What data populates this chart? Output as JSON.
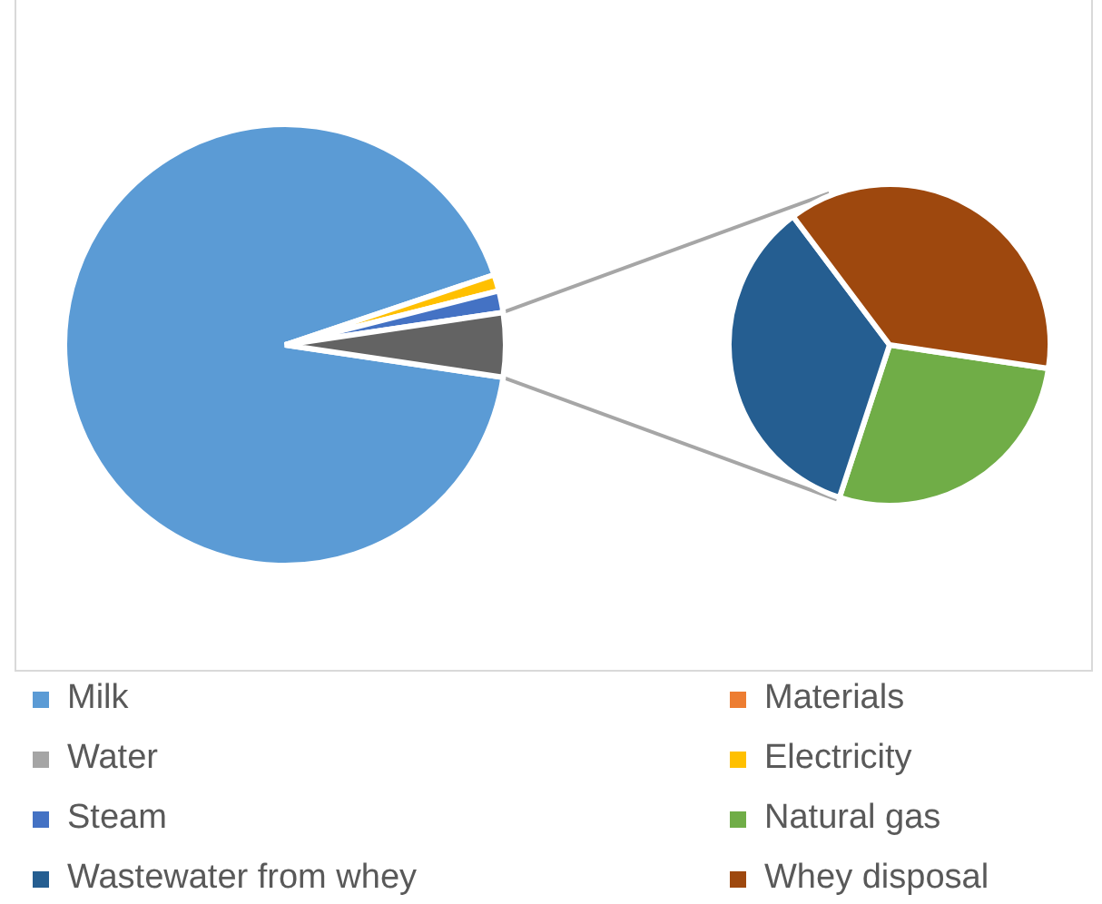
{
  "chart_data": [
    {
      "type": "pie",
      "categories": [
        "Milk",
        "Materials",
        "Water",
        "Electricity",
        "Steam",
        null
      ],
      "values": [
        92.5,
        0,
        0,
        1.2,
        1.6,
        4.7
      ],
      "colors": [
        "#5b9bd5",
        "#ed7d31",
        "#a5a5a5",
        "#ffc000",
        "#4472c4",
        "#636363"
      ],
      "legend": "bottom"
    },
    {
      "type": "pie",
      "categories": [
        "Natural gas",
        "Wastewater from whey",
        "Whey disposal"
      ],
      "values": [
        27.7,
        34.7,
        37.6
      ],
      "colors": [
        "#70ad47",
        "#255e91",
        "#9e480e"
      ],
      "legend": "bottom"
    }
  ]
}
